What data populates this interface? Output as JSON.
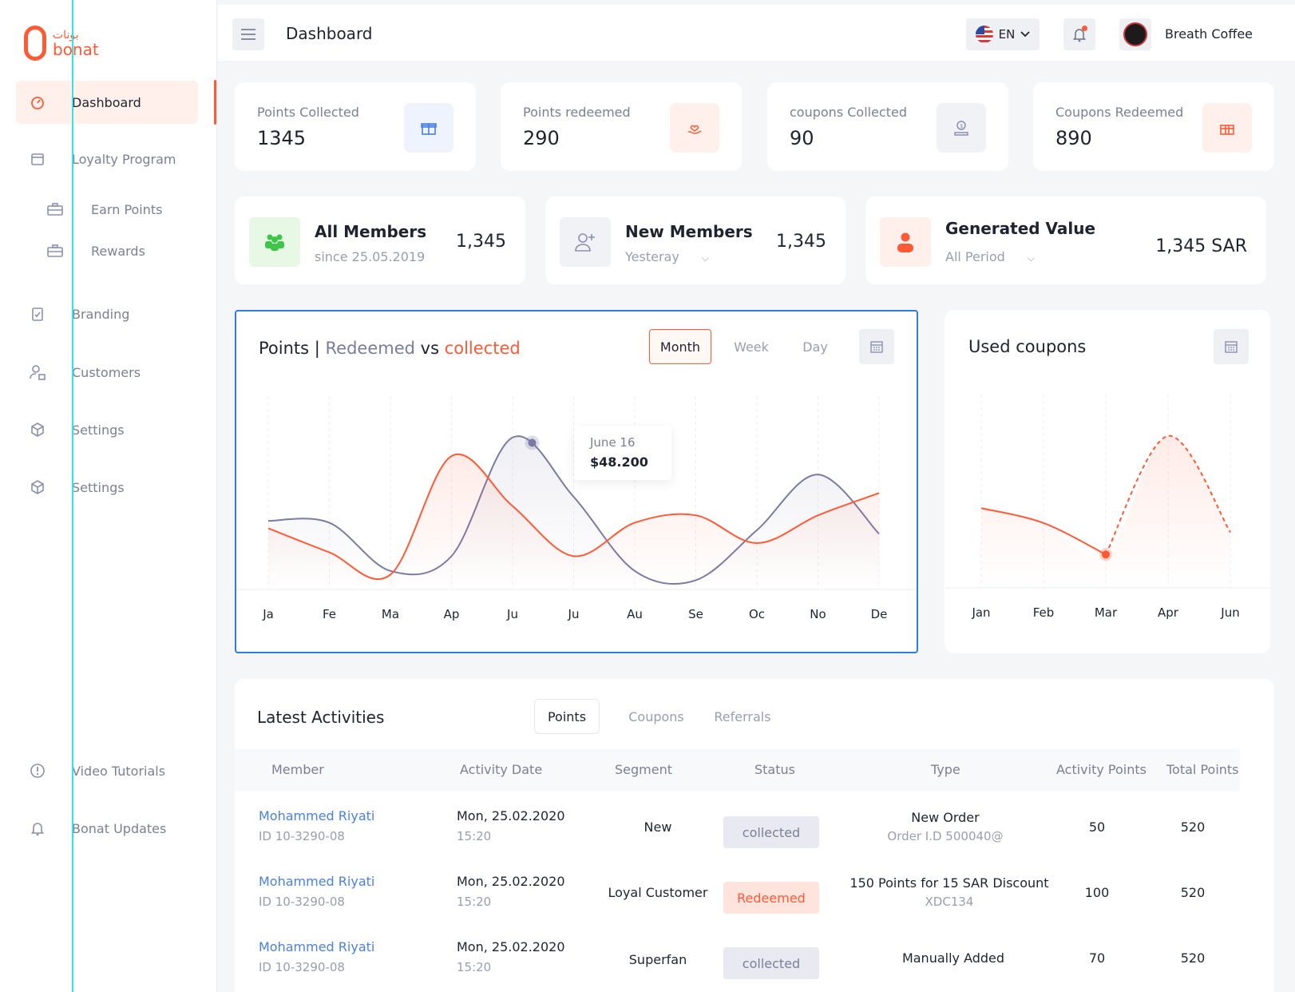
{
  "brand": {
    "logo_text": "bonat",
    "logo_arabic": "بونات"
  },
  "sidebar": {
    "items": [
      {
        "label": "Dashboard",
        "icon": "speedometer-icon"
      },
      {
        "label": "Loyalty Program",
        "icon": "calendar-box-icon"
      },
      {
        "label": "Earn Points",
        "icon": "briefcase-icon"
      },
      {
        "label": "Rewards",
        "icon": "briefcase-icon"
      },
      {
        "label": "Branding",
        "icon": "clipboard-check-icon"
      },
      {
        "label": "Customers",
        "icon": "user-lock-icon"
      },
      {
        "label": "Settings",
        "icon": "cube-icon"
      },
      {
        "label": "Settings",
        "icon": "cube-icon"
      },
      {
        "label": "Video Tutorials",
        "icon": "info-circle-icon"
      },
      {
        "label": "Bonat Updates",
        "icon": "bell-icon"
      }
    ]
  },
  "header": {
    "title": "Dashboard",
    "language": "EN",
    "brand_name": "Breath Coffee"
  },
  "stats": [
    {
      "label": "Points Collected",
      "value": "1345",
      "icon": "gift-icon",
      "color": "#4a7fe6"
    },
    {
      "label": "Points redeemed",
      "value": "290",
      "icon": "hand-heart-icon",
      "color": "#ff5a36"
    },
    {
      "label": "coupons Collected",
      "value": "90",
      "icon": "coin-hand-icon",
      "color": "#8a8fb0"
    },
    {
      "label": "Coupons Redeemed",
      "value": "890",
      "icon": "gift-box-icon",
      "color": "#ff5a36"
    }
  ],
  "members": [
    {
      "title": "All Members",
      "sub": "since 25.05.2019",
      "value": "1,345",
      "icon": "group-icon"
    },
    {
      "title": "New Members",
      "sub": "Yesteray",
      "value": "1,345",
      "icon": "add-user-icon"
    },
    {
      "title": "Generated Value",
      "sub": "All Period",
      "value": "1,345 SAR",
      "icon": "person-icon"
    }
  ],
  "points_chart": {
    "title_prefix": "Points | ",
    "title_redeemed": "Redeemed",
    "title_vs": " vs ",
    "title_collected": "collected",
    "periods": [
      "Month",
      "Week",
      "Day"
    ],
    "active_period": "Month",
    "tooltip_date": "June 16",
    "tooltip_value": "$48.200"
  },
  "coupons_chart": {
    "title": "Used coupons"
  },
  "chart_data": [
    {
      "type": "line",
      "x": [
        "Ja",
        "Fe",
        "Ma",
        "Ap",
        "Ju",
        "Ju",
        "Au",
        "Se",
        "Oc",
        "No",
        "De"
      ],
      "series": [
        {
          "name": "Redeemed",
          "color": "#7a7aa3",
          "values": [
            37,
            36,
            10,
            18,
            82,
            50,
            10,
            5,
            32,
            62,
            30
          ]
        },
        {
          "name": "collected",
          "color": "#ff5a36",
          "values": [
            33,
            20,
            8,
            72,
            45,
            18,
            36,
            40,
            25,
            40,
            52
          ]
        }
      ],
      "ylim": [
        0,
        100
      ],
      "grid": "vertical"
    },
    {
      "type": "line",
      "x": [
        "Jan",
        "Feb",
        "Mar",
        "Apr",
        "Jun"
      ],
      "series": [
        {
          "name": "Used coupons",
          "color": "#ff5a36",
          "values": [
            43,
            35,
            18,
            82,
            30
          ]
        }
      ],
      "ylim": [
        0,
        100
      ],
      "grid": "vertical"
    }
  ],
  "activities": {
    "title": "Latest Activities",
    "tabs": [
      "Points",
      "Coupons",
      "Referrals"
    ],
    "columns": [
      "Member",
      "Activity Date",
      "Segment",
      "Status",
      "Type",
      "Activity Points",
      "Total Points"
    ],
    "rows": [
      {
        "member": "Mohammed Riyati",
        "member_id": "ID 10-3290-08",
        "date": "Mon, 25.02.2020",
        "time": "15:20",
        "segment": "New",
        "status": "collected",
        "type": "New Order",
        "type_sub": "Order I.D 500040@",
        "activity_points": "50",
        "total_points": "520"
      },
      {
        "member": "Mohammed Riyati",
        "member_id": "ID 10-3290-08",
        "date": "Mon, 25.02.2020",
        "time": "15:20",
        "segment": "Loyal Customer",
        "status": "Redeemed",
        "type": "150 Points for 15 SAR Discount",
        "type_sub": "XDC134",
        "activity_points": "100",
        "total_points": "520"
      },
      {
        "member": "Mohammed Riyati",
        "member_id": "ID 10-3290-08",
        "date": "Mon, 25.02.2020",
        "time": "15:20",
        "segment": "Superfan",
        "status": "collected",
        "type": "Manually Added",
        "type_sub": "",
        "activity_points": "70",
        "total_points": "520"
      }
    ]
  }
}
